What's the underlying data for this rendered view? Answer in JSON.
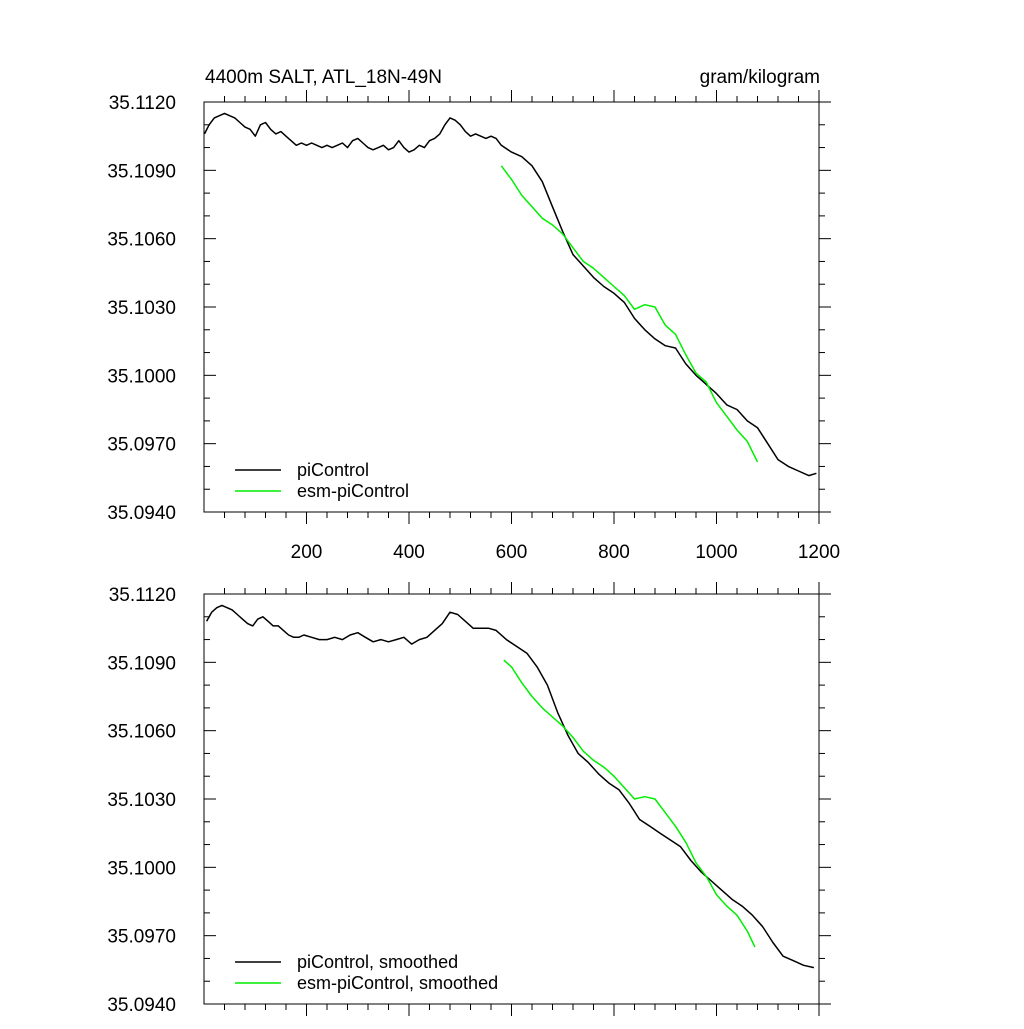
{
  "chart_data": [
    {
      "type": "line",
      "title_left": "4400m SALT, ATL_18N-49N",
      "title_right": "gram/kilogram",
      "xlabel": "",
      "ylabel": "",
      "xlim": [
        0,
        1200
      ],
      "ylim": [
        35.094,
        35.112
      ],
      "x_ticks": [
        200,
        400,
        600,
        800,
        1000,
        1200
      ],
      "x_tick_labels": [
        "200",
        "400",
        "600",
        "800",
        "1000",
        "1200"
      ],
      "y_ticks": [
        35.112,
        35.109,
        35.106,
        35.103,
        35.1,
        35.097,
        35.094
      ],
      "y_tick_labels": [
        "35.1120",
        "35.1090",
        "35.1060",
        "35.1030",
        "35.1000",
        "35.0970",
        "35.0940"
      ],
      "grid": false,
      "legend_position": "bottom-left",
      "series": [
        {
          "name": "piControl",
          "color": "#000000",
          "x": [
            1,
            10,
            20,
            30,
            40,
            50,
            60,
            70,
            80,
            90,
            100,
            110,
            120,
            130,
            140,
            150,
            160,
            170,
            180,
            190,
            200,
            210,
            220,
            230,
            240,
            250,
            260,
            270,
            280,
            290,
            300,
            310,
            320,
            330,
            340,
            350,
            360,
            370,
            380,
            390,
            400,
            410,
            420,
            430,
            440,
            450,
            460,
            470,
            480,
            490,
            500,
            510,
            520,
            530,
            540,
            550,
            560,
            570,
            580,
            600,
            620,
            640,
            660,
            680,
            700,
            720,
            740,
            760,
            780,
            800,
            820,
            840,
            860,
            880,
            900,
            920,
            940,
            960,
            980,
            1000,
            1020,
            1040,
            1060,
            1080,
            1100,
            1120,
            1140,
            1160,
            1180,
            1195
          ],
          "values": [
            35.1106,
            35.111,
            35.1113,
            35.1114,
            35.1115,
            35.1114,
            35.1113,
            35.1111,
            35.1109,
            35.1108,
            35.1105,
            35.111,
            35.1111,
            35.1108,
            35.1106,
            35.1107,
            35.1105,
            35.1103,
            35.1101,
            35.1102,
            35.1101,
            35.1102,
            35.1101,
            35.11,
            35.1101,
            35.11,
            35.1101,
            35.1102,
            35.11,
            35.1103,
            35.1104,
            35.1102,
            35.11,
            35.1099,
            35.11,
            35.1101,
            35.1099,
            35.11,
            35.1103,
            35.11,
            35.1098,
            35.1099,
            35.1101,
            35.11,
            35.1103,
            35.1104,
            35.1106,
            35.111,
            35.1113,
            35.1112,
            35.111,
            35.1107,
            35.1105,
            35.1106,
            35.1105,
            35.1104,
            35.1105,
            35.1104,
            35.1101,
            35.1098,
            35.1096,
            35.1092,
            35.1085,
            35.1074,
            35.1063,
            35.1053,
            35.1048,
            35.1043,
            35.1039,
            35.1036,
            35.1032,
            35.1025,
            35.102,
            35.1016,
            35.1013,
            35.1012,
            35.1005,
            35.1,
            35.0996,
            35.0992,
            35.0987,
            35.0985,
            35.098,
            35.0977,
            35.097,
            35.0963,
            35.096,
            35.0958,
            35.0956,
            35.0957
          ]
        },
        {
          "name": "esm-piControl",
          "color": "#00ee00",
          "x": [
            580,
            600,
            620,
            640,
            660,
            680,
            700,
            720,
            740,
            760,
            780,
            800,
            820,
            840,
            860,
            880,
            900,
            920,
            940,
            960,
            980,
            1000,
            1020,
            1040,
            1060,
            1080
          ],
          "values": [
            35.1092,
            35.1086,
            35.1079,
            35.1074,
            35.1069,
            35.1066,
            35.1062,
            35.1056,
            35.105,
            35.1047,
            35.1043,
            35.1039,
            35.1035,
            35.1029,
            35.1031,
            35.103,
            35.1022,
            35.1018,
            35.1009,
            35.1001,
            35.0997,
            35.0988,
            35.0982,
            35.0976,
            35.0971,
            35.0962
          ]
        }
      ]
    },
    {
      "type": "line",
      "xlabel": "",
      "ylabel": "",
      "xlim": [
        0,
        1200
      ],
      "ylim": [
        35.094,
        35.112
      ],
      "x_ticks": [
        200,
        400,
        600,
        800,
        1000,
        1200
      ],
      "y_ticks": [
        35.112,
        35.109,
        35.106,
        35.103,
        35.1,
        35.097,
        35.094
      ],
      "y_tick_labels": [
        "35.1120",
        "35.1090",
        "35.1060",
        "35.1030",
        "35.1000",
        "35.0970",
        "35.0940"
      ],
      "grid": false,
      "legend_position": "bottom-left",
      "series": [
        {
          "name": "piControl, smoothed",
          "color": "#000000",
          "x": [
            5,
            15,
            25,
            35,
            45,
            55,
            65,
            75,
            85,
            95,
            105,
            115,
            125,
            135,
            145,
            155,
            165,
            175,
            185,
            195,
            210,
            225,
            240,
            255,
            270,
            285,
            300,
            315,
            330,
            345,
            360,
            375,
            390,
            405,
            420,
            435,
            450,
            465,
            480,
            495,
            510,
            525,
            540,
            555,
            570,
            590,
            610,
            630,
            650,
            670,
            690,
            710,
            730,
            750,
            770,
            790,
            810,
            830,
            850,
            870,
            890,
            910,
            930,
            950,
            970,
            990,
            1010,
            1030,
            1050,
            1070,
            1090,
            1110,
            1130,
            1150,
            1170,
            1190
          ],
          "values": [
            35.1108,
            35.1112,
            35.1114,
            35.1115,
            35.1114,
            35.1113,
            35.1111,
            35.1109,
            35.1107,
            35.1106,
            35.1109,
            35.111,
            35.1108,
            35.1106,
            35.1106,
            35.1104,
            35.1102,
            35.1101,
            35.1101,
            35.1102,
            35.1101,
            35.11,
            35.11,
            35.1101,
            35.11,
            35.1102,
            35.1103,
            35.1101,
            35.1099,
            35.11,
            35.1099,
            35.11,
            35.1101,
            35.1098,
            35.11,
            35.1101,
            35.1104,
            35.1107,
            35.1112,
            35.1111,
            35.1108,
            35.1105,
            35.1105,
            35.1105,
            35.1104,
            35.11,
            35.1097,
            35.1094,
            35.1088,
            35.108,
            35.1068,
            35.1058,
            35.105,
            35.1046,
            35.1041,
            35.1037,
            35.1034,
            35.1028,
            35.1021,
            35.1018,
            35.1015,
            35.1012,
            35.1009,
            35.1003,
            35.0998,
            35.0994,
            35.099,
            35.0986,
            35.0983,
            35.0979,
            35.0974,
            35.0967,
            35.0961,
            35.0959,
            35.0957,
            35.0956
          ]
        },
        {
          "name": "esm-piControl, smoothed",
          "color": "#00ee00",
          "x": [
            585,
            600,
            620,
            640,
            660,
            680,
            700,
            720,
            740,
            760,
            780,
            800,
            820,
            840,
            860,
            880,
            900,
            920,
            940,
            960,
            980,
            1000,
            1020,
            1040,
            1060,
            1075
          ],
          "values": [
            35.1091,
            35.1088,
            35.1081,
            35.1075,
            35.107,
            35.1066,
            35.1062,
            35.1057,
            35.1051,
            35.1047,
            35.1044,
            35.104,
            35.1035,
            35.103,
            35.1031,
            35.103,
            35.1024,
            35.1018,
            35.1011,
            35.1002,
            35.0996,
            35.0988,
            35.0983,
            35.0979,
            35.0972,
            35.0965
          ]
        }
      ]
    }
  ]
}
